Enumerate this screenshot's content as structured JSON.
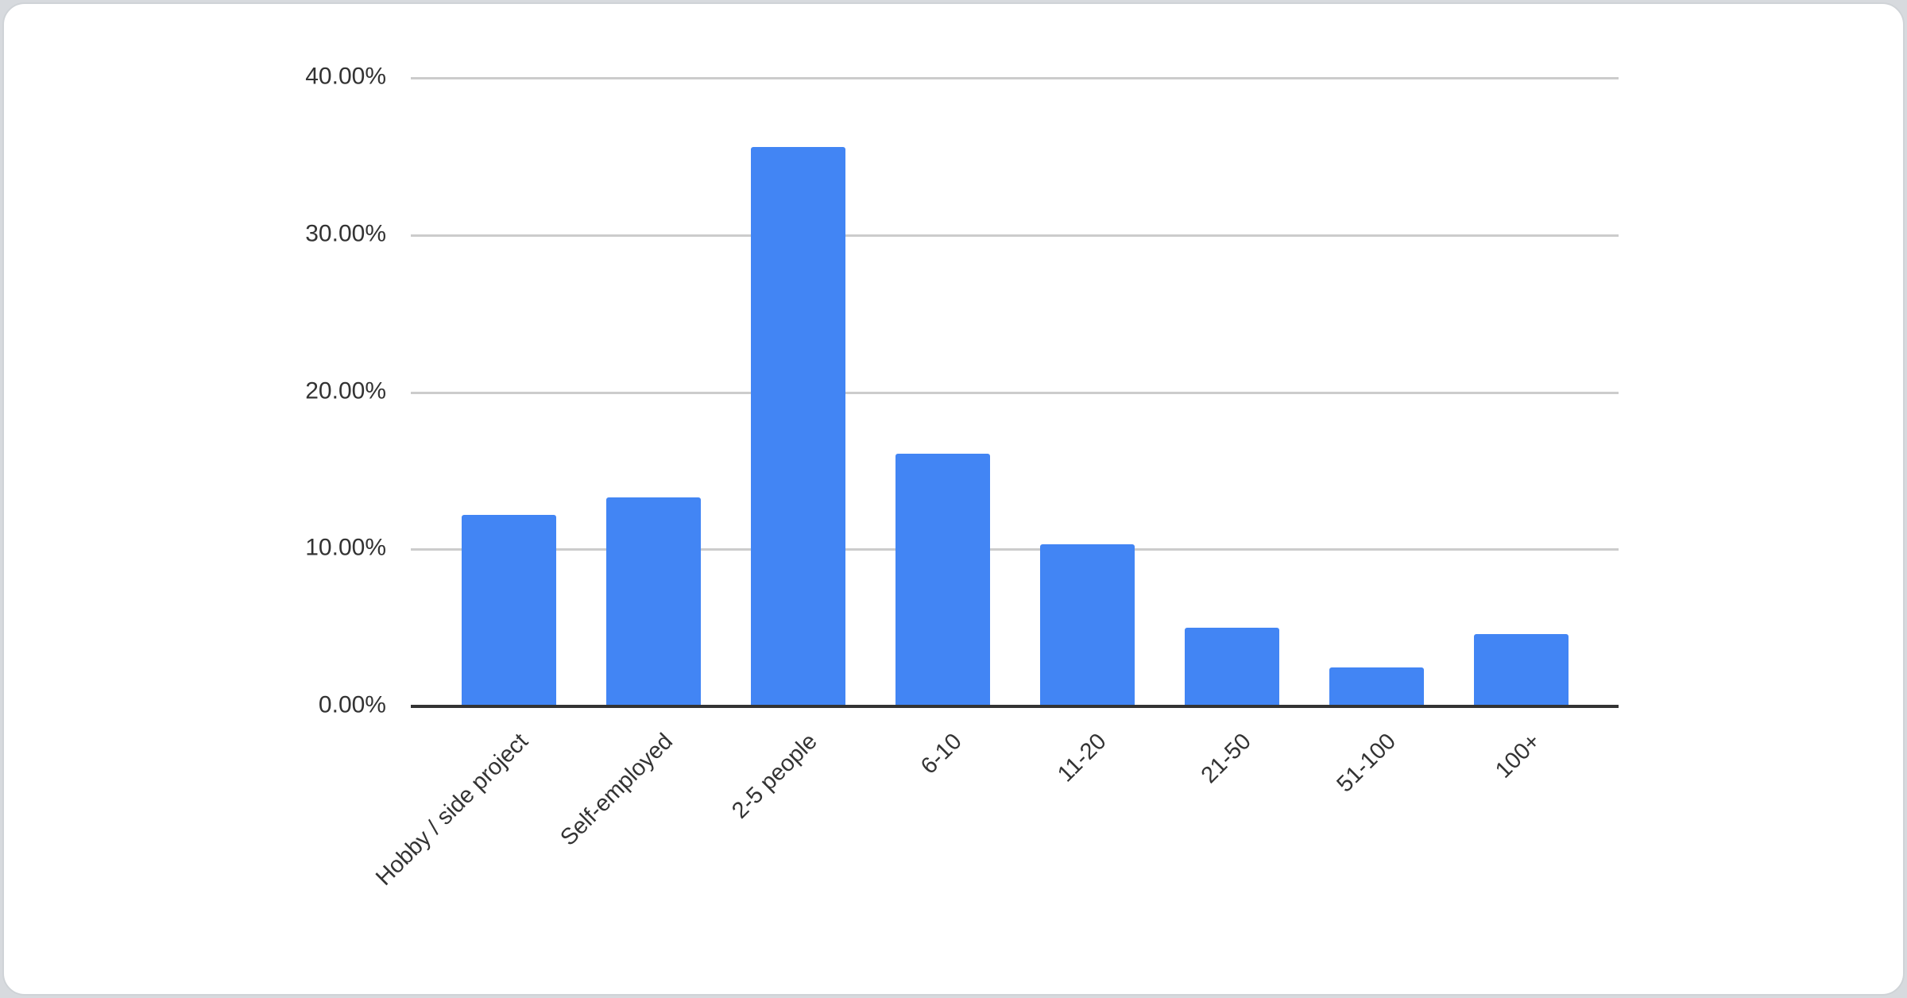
{
  "page": {
    "background_color": "#d7dade",
    "card_background_color": "#ffffff",
    "card_border_color": "#cfd3d7"
  },
  "chart_data": {
    "type": "bar",
    "title": "",
    "xlabel": "",
    "ylabel": "",
    "categories": [
      "Hobby / side project",
      "Self-employed",
      "2-5 people",
      "6-10",
      "11-20",
      "21-50",
      "51-100",
      "100+"
    ],
    "values": [
      12.2,
      13.3,
      35.6,
      16.1,
      10.3,
      5.0,
      2.5,
      4.6
    ],
    "ylim": [
      0,
      40
    ],
    "ytick_values": [
      0,
      10,
      20,
      30,
      40
    ],
    "ytick_labels": [
      "0.00%",
      "10.00%",
      "20.00%",
      "30.00%",
      "40.00%"
    ],
    "grid": true,
    "legend_position": "none",
    "bar_color": "#4285f4",
    "gridline_color": "#cccccc",
    "axis_color": "#333333",
    "label_color": "#333333"
  }
}
